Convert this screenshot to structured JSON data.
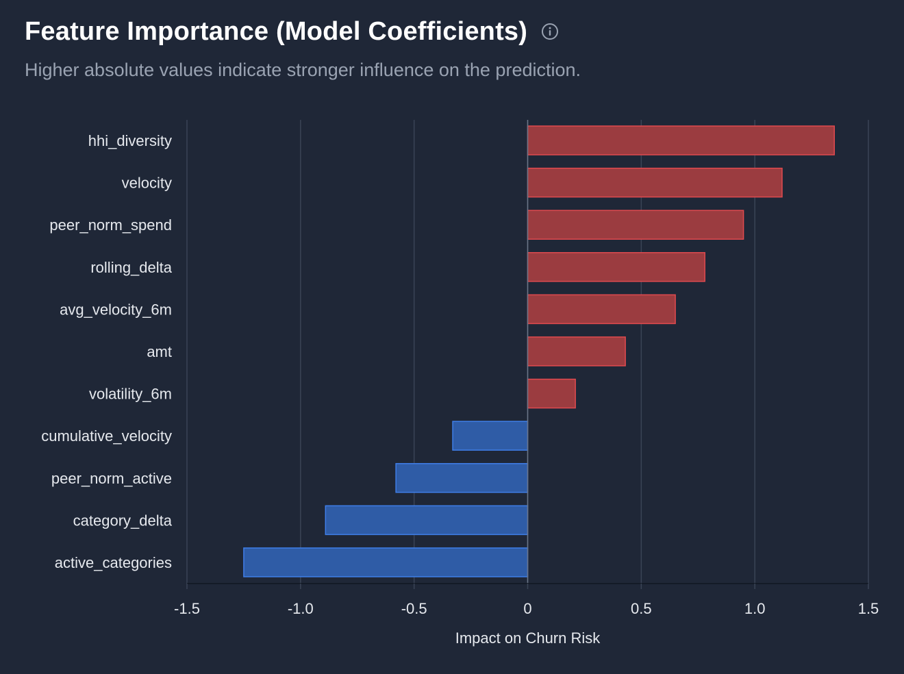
{
  "header": {
    "title": "Feature Importance (Model Coefficients)",
    "subtitle": "Higher absolute values indicate stronger influence on the prediction.",
    "info_icon": "info-icon"
  },
  "colors": {
    "background": "#1f2737",
    "positive_fill": "#9b3c40",
    "positive_stroke": "#e04a4f",
    "negative_fill": "#2f5ca6",
    "negative_stroke": "#3f7ee8",
    "grid": "#3a4456",
    "text": "#e6e9ee"
  },
  "chart_data": {
    "type": "bar",
    "orientation": "horizontal",
    "categories": [
      "hhi_diversity",
      "velocity",
      "peer_norm_spend",
      "rolling_delta",
      "avg_velocity_6m",
      "amt",
      "volatility_6m",
      "cumulative_velocity",
      "peer_norm_active",
      "category_delta",
      "active_categories"
    ],
    "values": [
      1.35,
      1.12,
      0.95,
      0.78,
      0.65,
      0.43,
      0.21,
      -0.33,
      -0.58,
      -0.89,
      -1.25
    ],
    "xlabel": "Impact on Churn Risk",
    "xlim": [
      -1.5,
      1.5
    ],
    "xticks": [
      "-1.5",
      "-1.0",
      "-0.5",
      "0",
      "0.5",
      "1.0",
      "1.5"
    ],
    "grid": "vertical"
  }
}
